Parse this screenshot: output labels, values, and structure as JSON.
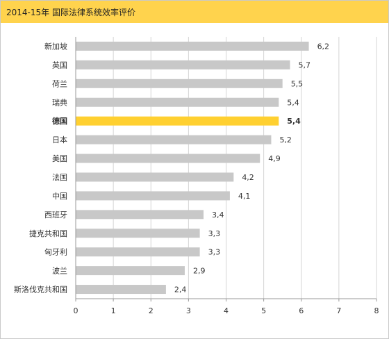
{
  "chart_data": {
    "type": "bar",
    "orientation": "horizontal",
    "title": "2014-15年 国际法律系统效率评价",
    "categories": [
      "新加坡",
      "英国",
      "荷兰",
      "瑞典",
      "德国",
      "日本",
      "美国",
      "法国",
      "中国",
      "西班牙",
      "捷克共和国",
      "匈牙利",
      "波兰",
      "斯洛伐克共和国"
    ],
    "values": [
      6.2,
      5.7,
      5.5,
      5.4,
      5.4,
      5.2,
      4.9,
      4.2,
      4.1,
      3.4,
      3.3,
      3.3,
      2.9,
      2.4
    ],
    "value_labels": [
      "6,2",
      "5,7",
      "5,5",
      "5,4",
      "5,4",
      "5,2",
      "4,9",
      "4,2",
      "4,1",
      "3,4",
      "3,3",
      "3,3",
      "2,9",
      "2,4"
    ],
    "highlight": "德国",
    "xlim": [
      0,
      8
    ],
    "xticks": [
      "0",
      "1",
      "2",
      "3",
      "4",
      "5",
      "6",
      "7",
      "8"
    ],
    "grid": true,
    "colors": {
      "bar": "#c8c8c8",
      "highlight_bar": "#ffd030",
      "title_bar": "#ffd34d",
      "grid": "#d4d4d4",
      "axis": "#999999",
      "text": "#333333"
    }
  }
}
